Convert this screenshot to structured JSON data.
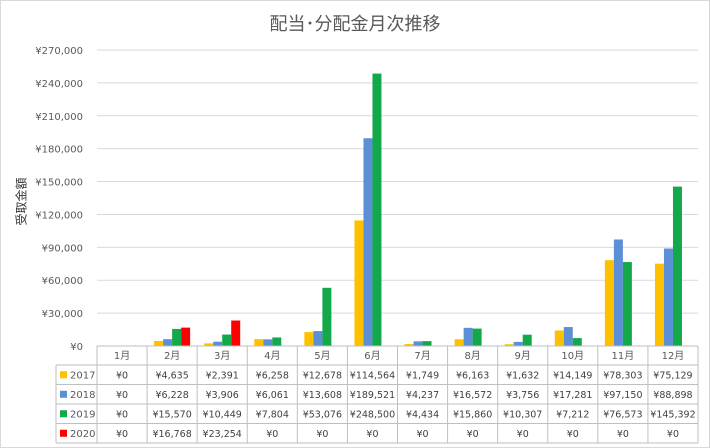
{
  "chart_data": {
    "type": "bar",
    "title": "配当･分配金月次推移",
    "ylabel": "受取金額",
    "xlabel": "",
    "ylim": [
      0,
      270000
    ],
    "yticks": [
      "¥0",
      "¥30,000",
      "¥60,000",
      "¥90,000",
      "¥120,000",
      "¥150,000",
      "¥180,000",
      "¥210,000",
      "¥240,000",
      "¥270,000"
    ],
    "ytick_values": [
      0,
      30000,
      60000,
      90000,
      120000,
      150000,
      180000,
      210000,
      240000,
      270000
    ],
    "grid": true,
    "legend": "data-table",
    "categories": [
      "1月",
      "2月",
      "3月",
      "4月",
      "5月",
      "6月",
      "7月",
      "8月",
      "9月",
      "10月",
      "11月",
      "12月"
    ],
    "series": [
      {
        "name": "2017",
        "color": "#ffc000",
        "values": [
          0,
          4635,
          2391,
          6258,
          12678,
          114564,
          1749,
          6163,
          1632,
          14149,
          78303,
          75129
        ],
        "labels": [
          "¥0",
          "¥4,635",
          "¥2,391",
          "¥6,258",
          "¥12,678",
          "¥114,564",
          "¥1,749",
          "¥6,163",
          "¥1,632",
          "¥14,149",
          "¥78,303",
          "¥75,129"
        ]
      },
      {
        "name": "2018",
        "color": "#5b8fd6",
        "values": [
          0,
          6228,
          3906,
          6061,
          13608,
          189521,
          4237,
          16572,
          3756,
          17281,
          97150,
          88898
        ],
        "labels": [
          "¥0",
          "¥6,228",
          "¥3,906",
          "¥6,061",
          "¥13,608",
          "¥189,521",
          "¥4,237",
          "¥16,572",
          "¥3,756",
          "¥17,281",
          "¥97,150",
          "¥88,898"
        ]
      },
      {
        "name": "2019",
        "color": "#13a84a",
        "values": [
          0,
          15570,
          10449,
          7804,
          53076,
          248500,
          4434,
          15860,
          10307,
          7212,
          76573,
          145392
        ],
        "labels": [
          "¥0",
          "¥15,570",
          "¥10,449",
          "¥7,804",
          "¥53,076",
          "¥248,500",
          "¥4,434",
          "¥15,860",
          "¥10,307",
          "¥7,212",
          "¥76,573",
          "¥145,392"
        ]
      },
      {
        "name": "2020",
        "color": "#ff0000",
        "values": [
          0,
          16768,
          23254,
          0,
          0,
          0,
          0,
          0,
          0,
          0,
          0,
          0
        ],
        "labels": [
          "¥0",
          "¥16,768",
          "¥23,254",
          "¥0",
          "¥0",
          "¥0",
          "¥0",
          "¥0",
          "¥0",
          "¥0",
          "¥0",
          "¥0"
        ]
      }
    ]
  }
}
